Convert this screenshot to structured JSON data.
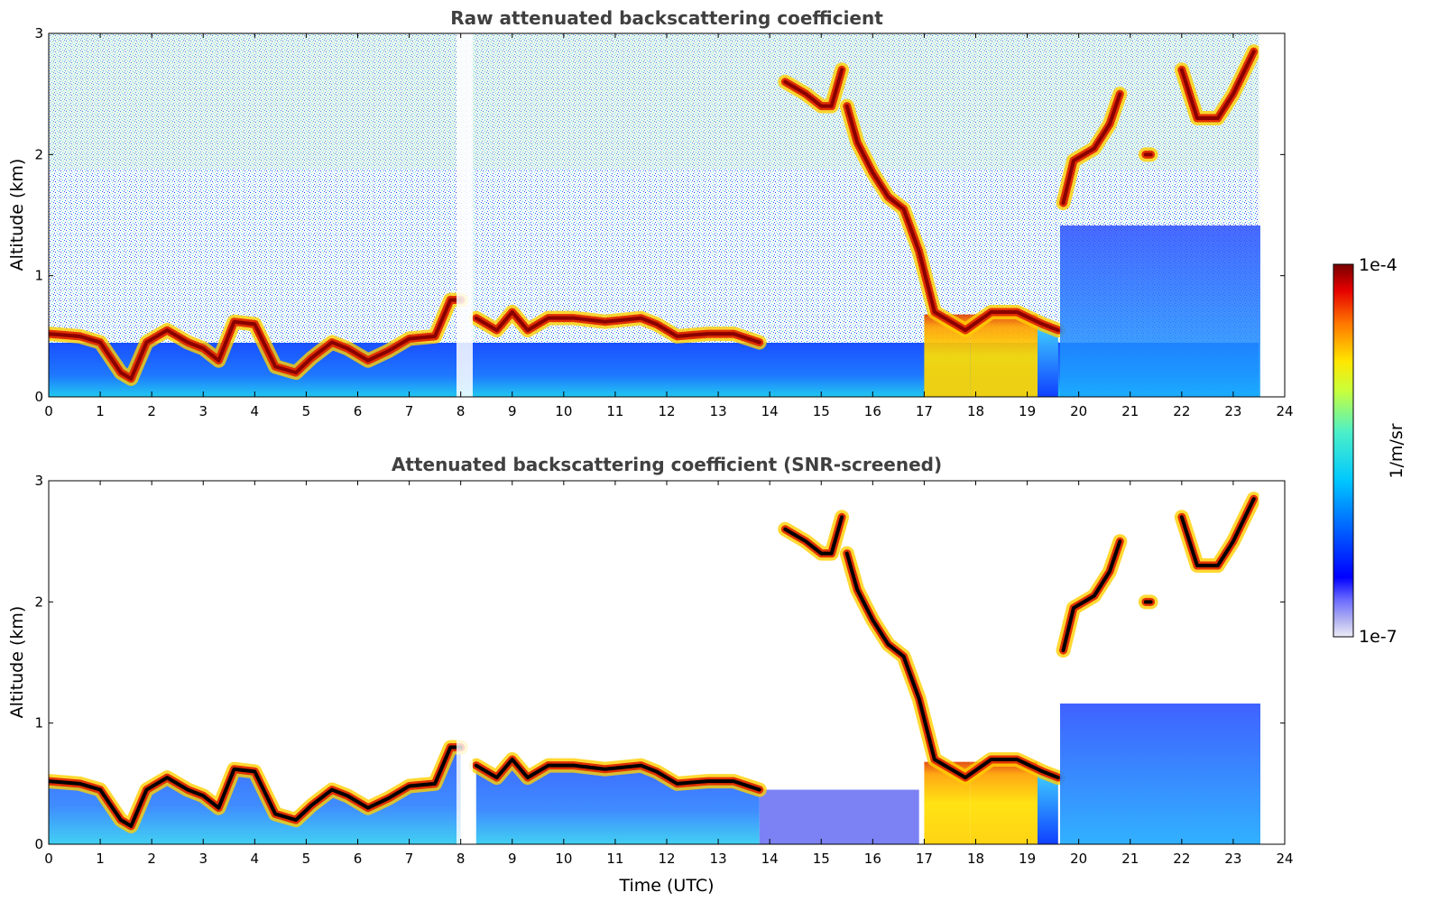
{
  "chart_data": [
    {
      "type": "heatmap",
      "title": "Raw attenuated backscattering coefficient",
      "xlabel": "",
      "ylabel": "Altitude (km)",
      "xlim": [
        0,
        24
      ],
      "ylim": [
        0,
        3
      ],
      "x_ticks": [
        "0",
        "1",
        "2",
        "3",
        "4",
        "5",
        "6",
        "7",
        "8",
        "9",
        "10",
        "11",
        "12",
        "13",
        "14",
        "15",
        "16",
        "17",
        "18",
        "19",
        "20",
        "21",
        "22",
        "23",
        "24"
      ],
      "y_ticks": [
        "0",
        "1",
        "2",
        "3"
      ],
      "data_end_time": 23.5,
      "cloud_layers": [
        {
          "name": "boundary-layer top",
          "points": [
            [
              0,
              0.52
            ],
            [
              0.6,
              0.5
            ],
            [
              1.0,
              0.45
            ],
            [
              1.4,
              0.2
            ],
            [
              1.6,
              0.15
            ],
            [
              1.9,
              0.45
            ],
            [
              2.3,
              0.55
            ],
            [
              2.7,
              0.45
            ],
            [
              3.0,
              0.4
            ],
            [
              3.3,
              0.3
            ],
            [
              3.6,
              0.62
            ],
            [
              4.0,
              0.6
            ],
            [
              4.4,
              0.25
            ],
            [
              4.8,
              0.2
            ],
            [
              5.1,
              0.32
            ],
            [
              5.5,
              0.45
            ],
            [
              5.8,
              0.4
            ],
            [
              6.2,
              0.3
            ],
            [
              6.6,
              0.38
            ],
            [
              7.0,
              0.48
            ],
            [
              7.5,
              0.5
            ],
            [
              7.8,
              0.8
            ],
            [
              8.0,
              0.8
            ]
          ]
        },
        {
          "name": "boundary-layer top (after gap)",
          "points": [
            [
              8.3,
              0.65
            ],
            [
              8.7,
              0.55
            ],
            [
              9.0,
              0.7
            ],
            [
              9.3,
              0.55
            ],
            [
              9.7,
              0.65
            ],
            [
              10.2,
              0.65
            ],
            [
              10.8,
              0.62
            ],
            [
              11.5,
              0.65
            ],
            [
              11.8,
              0.6
            ],
            [
              12.2,
              0.5
            ],
            [
              12.8,
              0.52
            ],
            [
              13.3,
              0.52
            ],
            [
              13.8,
              0.45
            ]
          ]
        },
        {
          "name": "elevated cloud",
          "points": [
            [
              14.3,
              2.6
            ],
            [
              14.7,
              2.5
            ],
            [
              15.0,
              2.4
            ],
            [
              15.2,
              2.4
            ],
            [
              15.4,
              2.7
            ]
          ]
        },
        {
          "name": "descending cloud",
          "points": [
            [
              15.5,
              2.4
            ],
            [
              15.7,
              2.1
            ],
            [
              16.0,
              1.85
            ],
            [
              16.3,
              1.65
            ],
            [
              16.6,
              1.55
            ],
            [
              16.9,
              1.2
            ],
            [
              17.2,
              0.7
            ],
            [
              17.8,
              0.55
            ],
            [
              18.3,
              0.7
            ],
            [
              18.8,
              0.7
            ],
            [
              19.3,
              0.6
            ],
            [
              19.6,
              0.55
            ]
          ]
        },
        {
          "name": "rising cloud",
          "points": [
            [
              19.7,
              1.6
            ],
            [
              19.9,
              1.95
            ],
            [
              20.3,
              2.05
            ],
            [
              20.6,
              2.25
            ],
            [
              20.8,
              2.5
            ]
          ]
        },
        {
          "name": "upper cloud",
          "points": [
            [
              21.3,
              2.0
            ],
            [
              21.4,
              2.0
            ]
          ]
        },
        {
          "name": "high cloud",
          "points": [
            [
              22.0,
              2.7
            ],
            [
              22.3,
              2.3
            ],
            [
              22.7,
              2.3
            ],
            [
              23.0,
              2.5
            ],
            [
              23.4,
              2.85
            ]
          ]
        }
      ],
      "precipitation_bands": [
        [
          17.0,
          17.9
        ],
        [
          17.9,
          19.2
        ]
      ]
    },
    {
      "type": "heatmap",
      "title": "Attenuated backscattering coefficient (SNR-screened)",
      "xlabel": "Time (UTC)",
      "ylabel": "Altitude (km)",
      "xlim": [
        0,
        24
      ],
      "ylim": [
        0,
        3
      ],
      "x_ticks": [
        "0",
        "1",
        "2",
        "3",
        "4",
        "5",
        "6",
        "7",
        "8",
        "9",
        "10",
        "11",
        "12",
        "13",
        "14",
        "15",
        "16",
        "17",
        "18",
        "19",
        "20",
        "21",
        "22",
        "23",
        "24"
      ],
      "y_ticks": [
        "0",
        "1",
        "2",
        "3"
      ],
      "data_end_time": 23.5,
      "colorbar": {
        "label": "1/m/sr",
        "min_label": "1e-7",
        "max_label": "1e-4",
        "scale": "log",
        "range": [
          1e-07,
          0.0001
        ]
      }
    }
  ],
  "colors": {
    "background": "#ffffff",
    "low": "#0a2aff",
    "mid": "#33e0e0",
    "high": "#ffd000",
    "peak": "#b40000",
    "saturated": "#000000"
  }
}
